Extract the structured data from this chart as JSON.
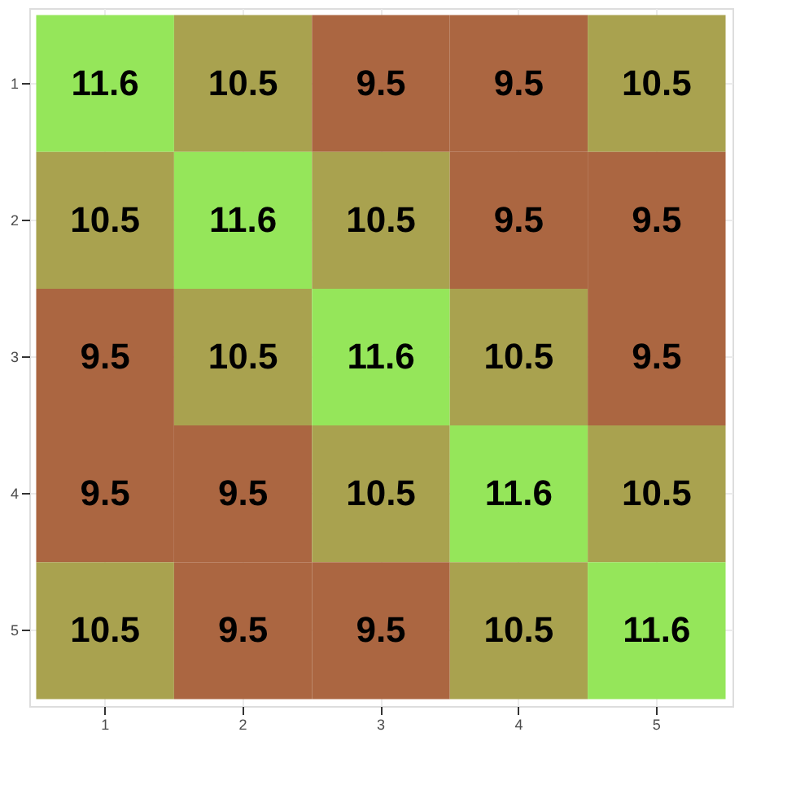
{
  "chart_data": {
    "type": "heatmap",
    "categories": [
      "1",
      "2",
      "3",
      "4",
      "5"
    ],
    "y_categories": [
      "1",
      "2",
      "3",
      "4",
      "5"
    ],
    "cells": [
      [
        11.6,
        10.5,
        9.5,
        9.5,
        10.5
      ],
      [
        10.5,
        11.6,
        10.5,
        9.5,
        9.5
      ],
      [
        9.5,
        10.5,
        11.6,
        10.5,
        9.5
      ],
      [
        9.5,
        9.5,
        10.5,
        11.6,
        10.5
      ],
      [
        10.5,
        9.5,
        9.5,
        10.5,
        11.6
      ]
    ],
    "colors": [
      "#95e65a",
      "#a9a24f",
      "#ab6641",
      "#ab6641",
      "#a9a24f",
      "#a9a24f",
      "#95e65a",
      "#a9a24f",
      "#ab6641",
      "#ab6641",
      "#ab6641",
      "#a9a24f",
      "#95e65a",
      "#a9a24f",
      "#ab6641",
      "#ab6641",
      "#ab6641",
      "#a9a24f",
      "#95e65a",
      "#a9a24f",
      "#a9a24f",
      "#ab6641",
      "#ab6641",
      "#a9a24f",
      "#95e65a"
    ],
    "data_labels": true,
    "grid": true
  }
}
